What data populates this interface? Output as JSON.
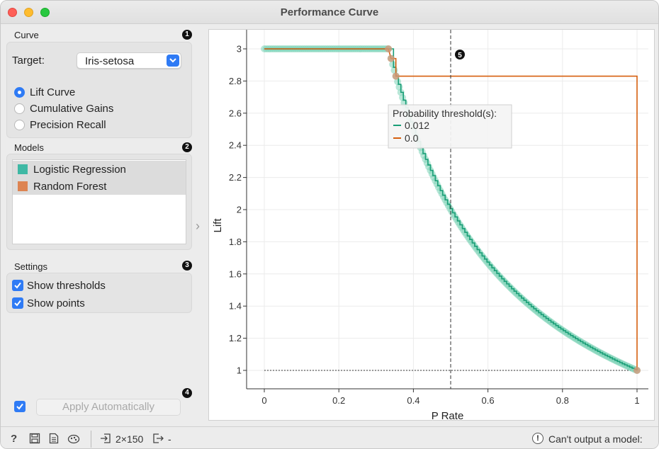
{
  "window": {
    "title": "Performance Curve"
  },
  "curve_section": {
    "label": "Curve",
    "badge": "1",
    "target_label": "Target:",
    "target_value": "Iris-setosa",
    "options": [
      {
        "label": "Lift Curve",
        "selected": true
      },
      {
        "label": "Cumulative Gains",
        "selected": false
      },
      {
        "label": "Precision Recall",
        "selected": false
      }
    ]
  },
  "models_section": {
    "label": "Models",
    "badge": "2",
    "items": [
      {
        "label": "Logistic Regression",
        "color": "#3fb8a4"
      },
      {
        "label": "Random Forest",
        "color": "#dd8452"
      }
    ]
  },
  "settings_section": {
    "label": "Settings",
    "badge": "3",
    "show_thresholds": {
      "label": "Show thresholds",
      "checked": true
    },
    "show_points": {
      "label": "Show points",
      "checked": true
    }
  },
  "apply": {
    "badge": "4",
    "label": "Apply Automatically",
    "checked": true
  },
  "chart_data": {
    "type": "line",
    "xlabel": "P Rate",
    "ylabel": "Lift",
    "xlim": [
      0,
      1
    ],
    "ylim": [
      0.9,
      3.1
    ],
    "xticks": [
      "0",
      "0.2",
      "0.4",
      "0.6",
      "0.8",
      "1"
    ],
    "yticks": [
      "1",
      "1.2",
      "1.4",
      "1.6",
      "1.8",
      "2",
      "2.2",
      "2.4",
      "2.6",
      "2.8",
      "3"
    ],
    "grid": true,
    "threshold_x": 0.5,
    "threshold_badge": "5",
    "baseline_y": 1,
    "tooltip": {
      "title": "Probability threshold(s):",
      "entries": [
        {
          "label": "0.012",
          "color": "#1a9e77"
        },
        {
          "label": "0.0",
          "color": "#d65f0e"
        }
      ]
    },
    "series": [
      {
        "color": "#1a9e77",
        "points_color": "#7fd3b8",
        "x": [
          0.0,
          0.333,
          0.36,
          0.38,
          0.4,
          0.45,
          0.5,
          0.55,
          0.6,
          0.65,
          0.7,
          0.75,
          0.8,
          0.85,
          0.9,
          0.95,
          1.0
        ],
        "y": [
          3.0,
          3.0,
          2.78,
          2.63,
          2.5,
          2.22,
          2.0,
          1.82,
          1.67,
          1.54,
          1.43,
          1.33,
          1.25,
          1.18,
          1.11,
          1.05,
          1.0
        ]
      },
      {
        "color": "#d65f0e",
        "points_color": "#cf9a7a",
        "x": [
          0.0,
          0.333,
          0.34,
          0.353,
          0.353,
          1.0,
          1.0
        ],
        "y": [
          3.0,
          3.0,
          2.94,
          2.94,
          2.83,
          2.83,
          1.0
        ]
      }
    ]
  },
  "collapse_arrow": "›",
  "statusbar": {
    "help_icon": "?",
    "data_in": "2×150",
    "data_out": "-",
    "message": "Can't output a model:",
    "warn_icon": "!"
  }
}
